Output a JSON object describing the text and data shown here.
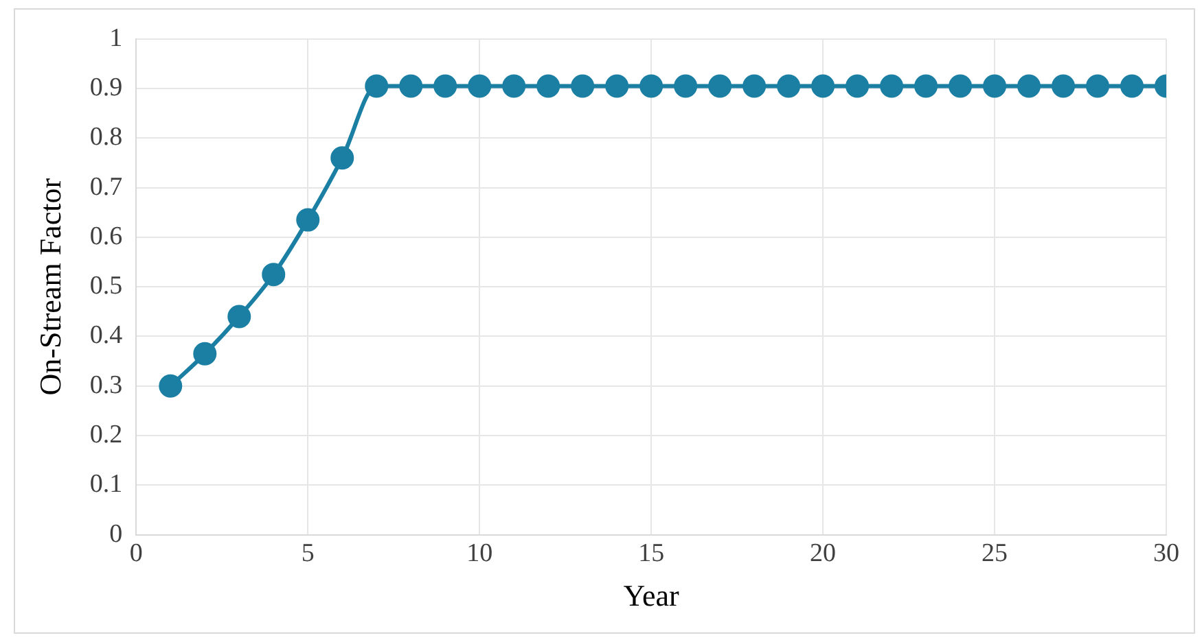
{
  "chart_data": {
    "type": "line",
    "xlabel": "Year",
    "ylabel": "On-Stream Factor",
    "x": [
      1,
      2,
      3,
      4,
      5,
      6,
      7,
      8,
      9,
      10,
      11,
      12,
      13,
      14,
      15,
      16,
      17,
      18,
      19,
      20,
      21,
      22,
      23,
      24,
      25,
      26,
      27,
      28,
      29,
      30
    ],
    "series": [
      {
        "color": "#1b7fa4",
        "values": [
          0.3,
          0.365,
          0.44,
          0.525,
          0.635,
          0.76,
          0.905,
          0.905,
          0.905,
          0.905,
          0.905,
          0.905,
          0.905,
          0.905,
          0.905,
          0.905,
          0.905,
          0.905,
          0.905,
          0.905,
          0.905,
          0.905,
          0.905,
          0.905,
          0.905,
          0.905,
          0.905,
          0.905,
          0.905,
          0.905
        ]
      }
    ],
    "xlim": [
      0,
      30
    ],
    "xticks": [
      0,
      5,
      10,
      15,
      20,
      25,
      30
    ],
    "ylim": [
      0,
      1
    ],
    "yticks": [
      0,
      0.1,
      0.2,
      0.3,
      0.4,
      0.5,
      0.6,
      0.7,
      0.8,
      0.9,
      1
    ],
    "grid": true,
    "legend": false,
    "marker": "circle",
    "line_style": "solid"
  }
}
